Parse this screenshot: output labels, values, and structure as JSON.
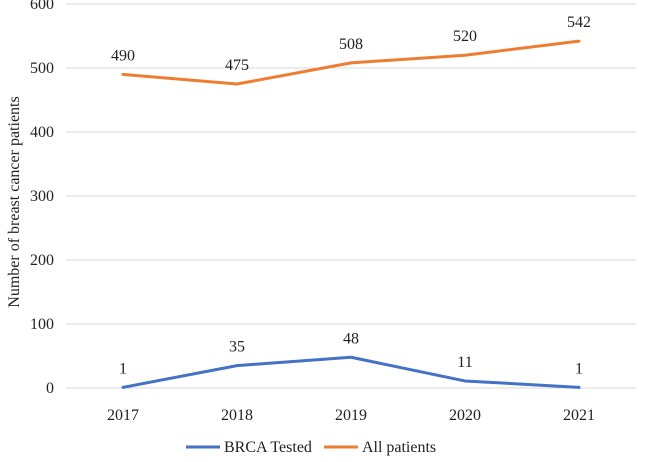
{
  "chart_data": {
    "type": "line",
    "title": "",
    "xlabel": "",
    "ylabel": "Number of breast cancer patients",
    "categories": [
      "2017",
      "2018",
      "2019",
      "2020",
      "2021"
    ],
    "ylim": [
      0,
      600
    ],
    "yticks": [
      0,
      100,
      200,
      300,
      400,
      500,
      600
    ],
    "grid": true,
    "legend_position": "bottom",
    "series": [
      {
        "name": "BRCA Tested",
        "color": "#4472c4",
        "values": [
          1,
          35,
          48,
          11,
          1
        ]
      },
      {
        "name": "All patients",
        "color": "#ed7d31",
        "values": [
          490,
          475,
          508,
          520,
          542
        ]
      }
    ]
  }
}
